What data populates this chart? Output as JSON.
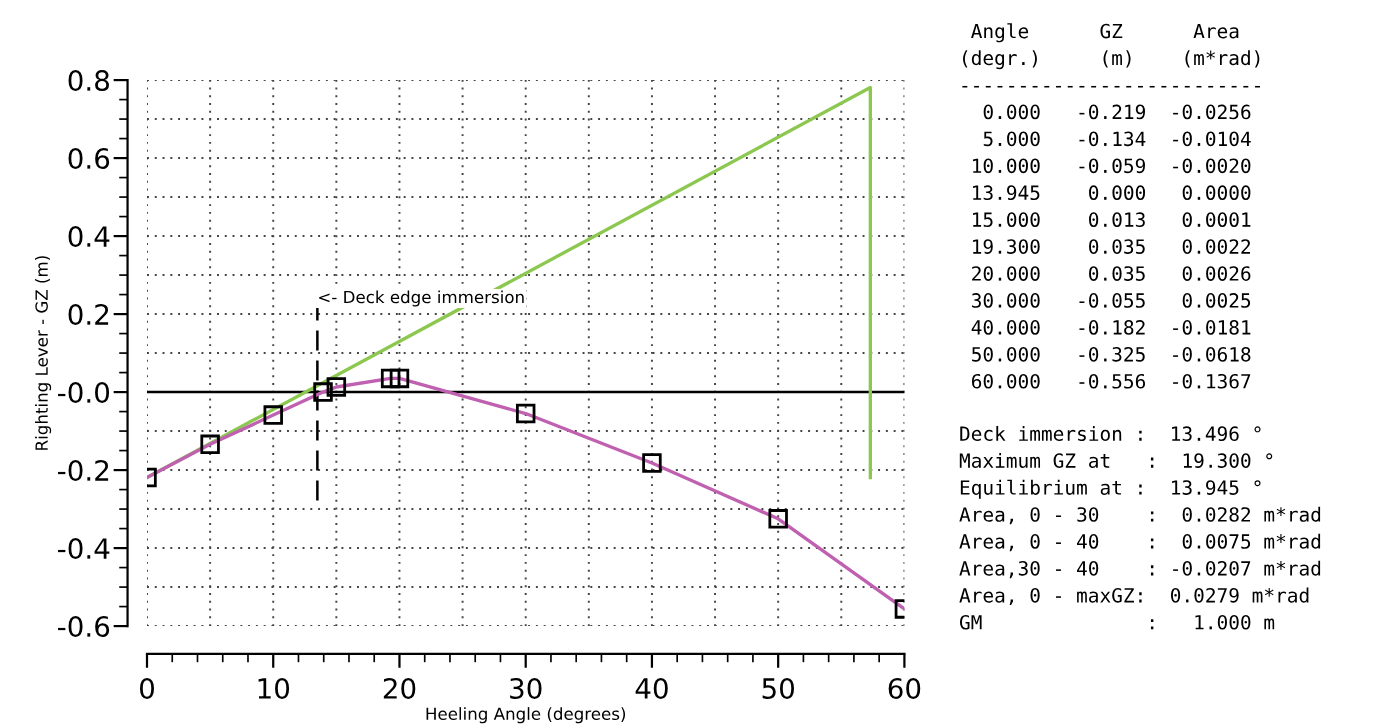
{
  "chart_data": {
    "type": "line",
    "xlabel": "Heeling Angle (degrees)",
    "ylabel": "Righting Lever - GZ (m)",
    "xlim": [
      0,
      60
    ],
    "xticks": [
      0,
      10,
      20,
      30,
      40,
      50,
      60
    ],
    "ylim": [
      -0.6,
      0.8
    ],
    "yticks": [
      -0.6,
      -0.4,
      -0.2,
      {
        "value": 0,
        "label": "-0.0"
      },
      0.2,
      0.4,
      0.6,
      0.8
    ],
    "grid": true,
    "legend": false,
    "series": [
      {
        "color": "#8cc850",
        "x": [
          0,
          57.3,
          57.3
        ],
        "values": [
          -0.219,
          0.781,
          -0.219
        ],
        "marker": "none"
      },
      {
        "color": "#c060b0",
        "x": [
          0,
          5,
          10,
          13.945,
          15,
          19.3,
          20,
          30,
          40,
          50,
          60
        ],
        "values": [
          -0.219,
          -0.134,
          -0.059,
          0.0,
          0.013,
          0.035,
          0.035,
          -0.055,
          -0.182,
          -0.325,
          -0.556
        ],
        "marker": "square"
      }
    ],
    "ref_lines": [
      {
        "axis": "y",
        "value": 0,
        "color": "#000000",
        "line_style": "solid"
      },
      {
        "axis": "x",
        "value": 13.496,
        "label": "<- Deck edge immersion",
        "color": "#000000",
        "line_style": "dashed"
      }
    ],
    "annotations": [
      " Angle      GZ      Area",
      "(degr.)     (m)    (m*rad)",
      "--------------------------",
      "  0.000   -0.219  -0.0256",
      "  5.000   -0.134  -0.0104",
      " 10.000   -0.059  -0.0020",
      " 13.945    0.000   0.0000",
      " 15.000    0.013   0.0001",
      " 19.300    0.035   0.0022",
      " 20.000    0.035   0.0026",
      " 30.000   -0.055   0.0025",
      " 40.000   -0.182  -0.0181",
      " 50.000   -0.325  -0.0618",
      " 60.000   -0.556  -0.1367",
      "Deck immersion :  13.496 °",
      "Maximum GZ at   :  19.300 °",
      "Equilibrium at :  13.945 °",
      "Area, 0 - 30    :  0.0282 m*rad",
      "Area, 0 - 40    :  0.0075 m*rad",
      "Area,30 - 40    : -0.0207 m*rad",
      "Area, 0 - maxGZ:  0.0279 m*rad",
      "GM              :   1.000 m"
    ]
  }
}
